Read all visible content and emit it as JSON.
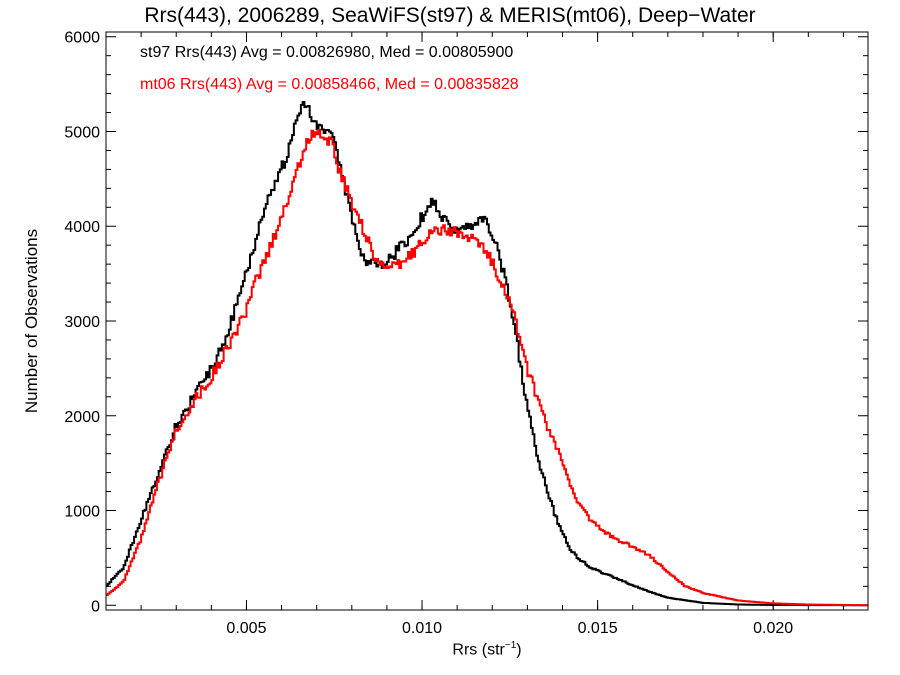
{
  "chart_data": {
    "type": "line",
    "title": "Rrs(443), 2006289, SeaWiFS(st97) & MERIS(mt06), Deep−Water",
    "xlabel_base": "Rrs (str",
    "xlabel_sup": "−1",
    "xlabel_end": ")",
    "ylabel": "Number of Observations",
    "xlim": [
      0.001,
      0.0227
    ],
    "ylim": [
      -50,
      6050
    ],
    "xticks": [
      0.005,
      0.01,
      0.015,
      0.02
    ],
    "xtick_labels": [
      "0.005",
      "0.010",
      "0.015",
      "0.020"
    ],
    "yticks": [
      0,
      1000,
      2000,
      3000,
      4000,
      5000,
      6000
    ],
    "ytick_labels": [
      "0",
      "1000",
      "2000",
      "3000",
      "4000",
      "5000",
      "6000"
    ],
    "line_style": "step",
    "series": [
      {
        "name": "st97",
        "legend": "st97 Rrs(443) Avg = 0.00826980, Med = 0.00805900",
        "color": "#000000",
        "x": [
          0.001,
          0.0015,
          0.002,
          0.0025,
          0.003,
          0.0035,
          0.004,
          0.0045,
          0.005,
          0.0053,
          0.0056,
          0.0059,
          0.0062,
          0.0064,
          0.0066,
          0.0068,
          0.007,
          0.0072,
          0.0074,
          0.0076,
          0.0078,
          0.008,
          0.0082,
          0.0085,
          0.0088,
          0.0091,
          0.0094,
          0.0097,
          0.01,
          0.0103,
          0.0106,
          0.0109,
          0.0112,
          0.0115,
          0.0118,
          0.0121,
          0.0124,
          0.0127,
          0.013,
          0.0133,
          0.0136,
          0.0139,
          0.0142,
          0.0145,
          0.0148,
          0.0151,
          0.0155,
          0.016,
          0.0165,
          0.017,
          0.018,
          0.019,
          0.02,
          0.0227
        ],
        "y": [
          200,
          400,
          900,
          1400,
          1900,
          2200,
          2500,
          2900,
          3500,
          3900,
          4300,
          4500,
          4800,
          5100,
          5300,
          5200,
          5050,
          5050,
          5000,
          4750,
          4400,
          4100,
          3750,
          3600,
          3600,
          3650,
          3800,
          3900,
          4100,
          4250,
          4100,
          3950,
          3950,
          4050,
          4050,
          3800,
          3400,
          2800,
          2100,
          1550,
          1150,
          850,
          600,
          480,
          400,
          350,
          290,
          210,
          140,
          80,
          25,
          8,
          3,
          0
        ],
        "smooth": 0
      },
      {
        "name": "mt06",
        "legend": "mt06 Rrs(443) Avg = 0.00858466, Med = 0.00835828",
        "color": "#ff0000",
        "x": [
          0.001,
          0.0015,
          0.002,
          0.0025,
          0.003,
          0.0035,
          0.004,
          0.0045,
          0.005,
          0.0053,
          0.0056,
          0.0059,
          0.0062,
          0.0064,
          0.0066,
          0.0068,
          0.007,
          0.0072,
          0.0074,
          0.0076,
          0.0078,
          0.008,
          0.0082,
          0.0085,
          0.0088,
          0.0091,
          0.0094,
          0.0097,
          0.01,
          0.0103,
          0.0106,
          0.0109,
          0.0112,
          0.0115,
          0.0118,
          0.0121,
          0.0124,
          0.0127,
          0.013,
          0.0133,
          0.0136,
          0.0139,
          0.0142,
          0.0145,
          0.0148,
          0.0151,
          0.0155,
          0.016,
          0.0165,
          0.017,
          0.0175,
          0.018,
          0.019,
          0.02,
          0.021,
          0.0227
        ],
        "y": [
          100,
          250,
          700,
          1300,
          1850,
          2150,
          2400,
          2750,
          3100,
          3450,
          3700,
          4000,
          4300,
          4550,
          4750,
          4950,
          5000,
          4950,
          4900,
          4650,
          4450,
          4250,
          4100,
          3800,
          3600,
          3550,
          3600,
          3700,
          3850,
          3950,
          3950,
          3950,
          3900,
          3850,
          3750,
          3550,
          3300,
          2950,
          2500,
          2150,
          1850,
          1600,
          1300,
          1050,
          900,
          800,
          700,
          620,
          520,
          350,
          200,
          130,
          50,
          20,
          8,
          0
        ],
        "smooth": 1
      }
    ]
  }
}
